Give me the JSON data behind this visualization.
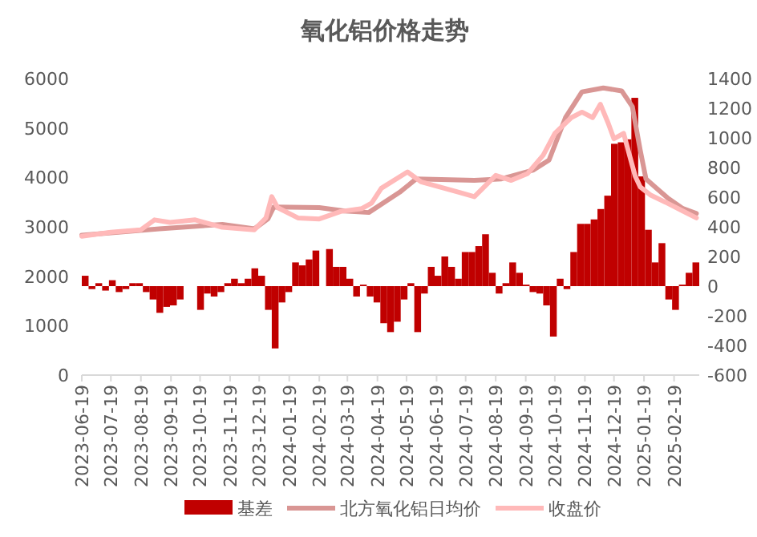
{
  "chart_data": {
    "type": "bar",
    "title": "氧化铝价格走势",
    "legend": "bottom",
    "grid": false,
    "xlim": [
      "2023-06-19",
      "2025-03-17"
    ],
    "xticks": [
      "2023-06-19",
      "2023-07-19",
      "2023-08-19",
      "2023-09-19",
      "2023-10-19",
      "2023-11-19",
      "2023-12-19",
      "2024-01-19",
      "2024-02-19",
      "2024-03-19",
      "2024-04-19",
      "2024-05-19",
      "2024-06-19",
      "2024-07-19",
      "2024-08-19",
      "2024-09-19",
      "2024-10-19",
      "2024-11-19",
      "2024-12-19",
      "2025-01-19",
      "2025-02-19"
    ],
    "ylim": [
      0,
      6000
    ],
    "yticks": [
      0,
      1000,
      2000,
      3000,
      4000,
      5000,
      6000
    ],
    "y2lim": [
      -600,
      1400
    ],
    "y2ticks": [
      -600,
      -400,
      -200,
      0,
      200,
      400,
      600,
      800,
      1000,
      1200,
      1400
    ],
    "series": [
      {
        "name": "基差",
        "axis": "y2",
        "color": "#c00000",
        "x": [
          "2023-06-19",
          "2023-06-26",
          "2023-07-03",
          "2023-07-10",
          "2023-07-17",
          "2023-07-24",
          "2023-07-31",
          "2023-08-07",
          "2023-08-14",
          "2023-08-21",
          "2023-08-28",
          "2023-09-04",
          "2023-09-11",
          "2023-09-18",
          "2023-09-25",
          "2023-10-02",
          "2023-10-09",
          "2023-10-16",
          "2023-10-23",
          "2023-10-30",
          "2023-11-06",
          "2023-11-13",
          "2023-11-20",
          "2023-11-27",
          "2023-12-04",
          "2023-12-11",
          "2023-12-18",
          "2023-12-25",
          "2024-01-01",
          "2024-01-08",
          "2024-01-15",
          "2024-01-22",
          "2024-01-29",
          "2024-02-05",
          "2024-02-12",
          "2024-02-19",
          "2024-02-26",
          "2024-03-04",
          "2024-03-11",
          "2024-03-18",
          "2024-03-25",
          "2024-04-01",
          "2024-04-08",
          "2024-04-15",
          "2024-04-22",
          "2024-04-29",
          "2024-05-06",
          "2024-05-13",
          "2024-05-20",
          "2024-05-27",
          "2024-06-03",
          "2024-06-10",
          "2024-06-17",
          "2024-06-24",
          "2024-07-01",
          "2024-07-08",
          "2024-07-15",
          "2024-07-22",
          "2024-07-29",
          "2024-08-05",
          "2024-08-12",
          "2024-08-19",
          "2024-08-26",
          "2024-09-02",
          "2024-09-09",
          "2024-09-16",
          "2024-09-23",
          "2024-09-30",
          "2024-10-07",
          "2024-10-14",
          "2024-10-21",
          "2024-10-28",
          "2024-11-04",
          "2024-11-11",
          "2024-11-18",
          "2024-11-25",
          "2024-12-02",
          "2024-12-09",
          "2024-12-16",
          "2024-12-23",
          "2024-12-30",
          "2025-01-06",
          "2025-01-13",
          "2025-01-20",
          "2025-01-27",
          "2025-02-03",
          "2025-02-10",
          "2025-02-17",
          "2025-02-24",
          "2025-03-03",
          "2025-03-10"
        ],
        "values": [
          70,
          -20,
          20,
          -30,
          40,
          -40,
          -20,
          20,
          20,
          -40,
          -90,
          -180,
          -140,
          -130,
          -90,
          null,
          null,
          -160,
          -50,
          -70,
          -40,
          20,
          50,
          20,
          50,
          120,
          70,
          -160,
          -420,
          -110,
          -40,
          160,
          140,
          180,
          240,
          null,
          250,
          130,
          130,
          50,
          -70,
          10,
          -70,
          -110,
          -250,
          -310,
          -240,
          -90,
          20,
          -310,
          -50,
          130,
          70,
          200,
          130,
          50,
          230,
          230,
          270,
          350,
          90,
          -50,
          20,
          160,
          90,
          10,
          -40,
          -50,
          -130,
          -340,
          50,
          -20,
          230,
          420,
          420,
          450,
          520,
          610,
          960,
          970,
          990,
          1270,
          740,
          380,
          160,
          290,
          -90,
          -160,
          10,
          90,
          160
        ]
      },
      {
        "name": "北方氧化铝日均价",
        "type": "line",
        "color": "#d99694",
        "x": [
          "2023-06-19",
          "2023-09-07",
          "2023-11-11",
          "2023-12-14",
          "2023-12-28",
          "2024-01-03",
          "2024-02-19",
          "2024-03-16",
          "2024-04-10",
          "2024-05-12",
          "2024-05-29",
          "2024-07-28",
          "2024-08-25",
          "2024-09-27",
          "2024-10-13",
          "2024-10-30",
          "2024-11-16",
          "2024-12-08",
          "2024-12-27",
          "2025-01-07",
          "2025-01-15",
          "2025-01-21",
          "2025-02-01",
          "2025-02-12",
          "2025-02-28",
          "2025-03-14"
        ],
        "values": [
          2830,
          2960,
          3050,
          2960,
          3160,
          3400,
          3390,
          3320,
          3290,
          3700,
          3970,
          3940,
          3970,
          4150,
          4350,
          5210,
          5730,
          5810,
          5750,
          5430,
          4560,
          3970,
          3780,
          3590,
          3370,
          3270
        ]
      },
      {
        "name": "收盘价",
        "type": "line",
        "color": "#ffb9b9",
        "x": [
          "2023-06-19",
          "2023-07-19",
          "2023-08-19",
          "2023-09-02",
          "2023-09-18",
          "2023-10-14",
          "2023-11-11",
          "2023-12-14",
          "2023-12-26",
          "2024-01-01",
          "2024-01-07",
          "2024-01-28",
          "2024-02-19",
          "2024-03-12",
          "2024-04-03",
          "2024-04-13",
          "2024-04-23",
          "2024-05-20",
          "2024-06-03",
          "2024-07-12",
          "2024-07-28",
          "2024-08-19",
          "2024-09-04",
          "2024-09-21",
          "2024-10-07",
          "2024-10-19",
          "2024-11-05",
          "2024-11-16",
          "2024-11-27",
          "2024-12-05",
          "2024-12-13",
          "2024-12-19",
          "2024-12-29",
          "2025-01-04",
          "2025-01-10",
          "2025-01-15",
          "2025-01-26",
          "2025-02-12",
          "2025-02-28",
          "2025-03-14"
        ],
        "values": [
          2810,
          2890,
          2940,
          3140,
          3090,
          3140,
          2990,
          2940,
          3180,
          3610,
          3390,
          3180,
          3160,
          3310,
          3370,
          3480,
          3780,
          4110,
          3910,
          3700,
          3610,
          4040,
          3940,
          4080,
          4450,
          4890,
          5210,
          5320,
          5210,
          5480,
          5100,
          4780,
          4890,
          4450,
          4020,
          3810,
          3640,
          3480,
          3320,
          3180
        ]
      }
    ]
  }
}
